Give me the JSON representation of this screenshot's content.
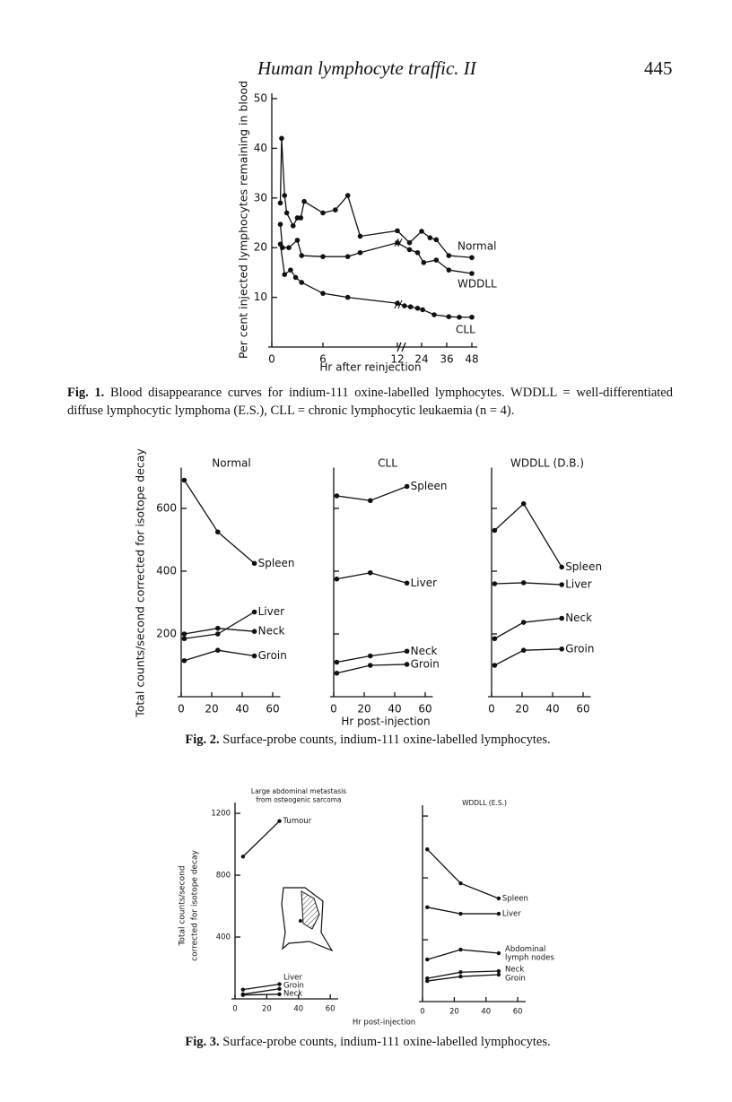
{
  "header": {
    "running_title": "Human lymphocyte traffic. II",
    "page_number": "445"
  },
  "captions": [
    {
      "label": "Fig. 1.",
      "text": "Blood disappearance curves for indium-111 oxine-labelled lymphocytes. WDDLL = well-differentiated diffuse lymphocytic lymphoma (E.S.), CLL = chronic lymphocytic leukaemia (n = 4)."
    },
    {
      "label": "Fig. 2.",
      "text": "Surface-probe counts, indium-111 oxine-labelled lymphocytes."
    },
    {
      "label": "Fig. 3.",
      "text": "Surface-probe counts, indium-111 oxine-labelled lymphocytes."
    }
  ],
  "chart_data": [
    {
      "type": "line",
      "y_label": "Per cent injected lymphocytes remaining in blood",
      "x_label": "Hr after reinjection",
      "xlim": [
        0,
        48
      ],
      "xticks": [
        0,
        6,
        12,
        24,
        36,
        48
      ],
      "ylim": [
        0,
        50
      ],
      "yticks": [
        10,
        20,
        30,
        40,
        50
      ],
      "color": "#111111",
      "series": [
        {
          "name": "Normal",
          "x": [
            1,
            1.15,
            1.5,
            1.75,
            2.5,
            3,
            3.4,
            3.8,
            6,
            7,
            8,
            9,
            12,
            18,
            24,
            28,
            31,
            37,
            48
          ],
          "values": [
            29,
            42,
            30.5,
            27,
            24.4,
            26,
            26,
            29.3,
            27,
            27.6,
            30.5,
            22.3,
            23.4,
            21,
            23.3,
            22,
            21.6,
            18.4,
            18
          ]
        },
        {
          "name": "WDDLL",
          "x": [
            1,
            1.25,
            2,
            3,
            3.5,
            6,
            8,
            9,
            12,
            18,
            22,
            25,
            31,
            37,
            48
          ],
          "values": [
            24.7,
            20,
            20,
            21.5,
            18.4,
            18.2,
            18.2,
            19,
            21,
            19.6,
            19,
            17,
            17.5,
            15.5,
            14.8
          ]
        },
        {
          "name": "CLL",
          "x": [
            1,
            1.5,
            2.2,
            2.8,
            3.5,
            6,
            8,
            12,
            15.5,
            18.5,
            22,
            24.5,
            30,
            37,
            42,
            48
          ],
          "values": [
            20.7,
            14.6,
            15.5,
            14,
            13,
            10.8,
            10,
            8.8,
            8.3,
            8.1,
            7.8,
            7.5,
            6.5,
            6.1,
            6,
            6
          ]
        }
      ]
    },
    {
      "type": "line",
      "title": "Normal",
      "y_label": "Total counts/second corrected for isotope decay",
      "xlim": [
        0,
        65
      ],
      "xticks": [
        0,
        20,
        40,
        60
      ],
      "ylim": [
        0,
        730
      ],
      "yticks": [
        200,
        400,
        600
      ],
      "x": [
        2,
        24,
        48
      ],
      "color": "#111111",
      "series": [
        {
          "name": "Spleen",
          "values": [
            690,
            525,
            425
          ]
        },
        {
          "name": "Liver",
          "values": [
            185,
            200,
            270
          ]
        },
        {
          "name": "Neck",
          "values": [
            200,
            218,
            208
          ]
        },
        {
          "name": "Groin",
          "values": [
            115,
            148,
            130
          ]
        }
      ]
    },
    {
      "type": "line",
      "title": "CLL",
      "x_label": "Hr post-injection",
      "xlim": [
        0,
        65
      ],
      "xticks": [
        0,
        20,
        40,
        60
      ],
      "ylim": [
        0,
        730
      ],
      "x": [
        2,
        24,
        48
      ],
      "color": "#111111",
      "series": [
        {
          "name": "Spleen",
          "values": [
            640,
            625,
            670
          ]
        },
        {
          "name": "Liver",
          "values": [
            375,
            395,
            362
          ]
        },
        {
          "name": "Neck",
          "values": [
            110,
            130,
            145
          ]
        },
        {
          "name": "Groin",
          "values": [
            75,
            100,
            103
          ]
        }
      ]
    },
    {
      "type": "line",
      "title": "WDDLL (D.B.)",
      "xlim": [
        0,
        65
      ],
      "xticks": [
        0,
        20,
        40,
        60
      ],
      "ylim": [
        0,
        730
      ],
      "x": [
        2,
        21,
        46
      ],
      "color": "#111111",
      "series": [
        {
          "name": "Spleen",
          "values": [
            530,
            615,
            413
          ]
        },
        {
          "name": "Liver",
          "values": [
            360,
            363,
            357
          ]
        },
        {
          "name": "Neck",
          "values": [
            185,
            237,
            250
          ]
        },
        {
          "name": "Groin",
          "values": [
            100,
            148,
            152
          ]
        }
      ]
    },
    {
      "type": "line",
      "title": [
        "Large abdominal metastasis",
        "from osteogenic sarcoma"
      ],
      "y_label": [
        "Total counts/second",
        "corrected for isotope decay"
      ],
      "xlim": [
        0,
        65
      ],
      "xticks": [
        0,
        20,
        40,
        60
      ],
      "ylim": [
        0,
        1270
      ],
      "yticks": [
        400,
        800,
        1200
      ],
      "x": [
        5,
        28
      ],
      "color": "#111111",
      "series": [
        {
          "name": "Tumour",
          "values": [
            920,
            1150
          ]
        },
        {
          "name": "Liver",
          "values": [
            60,
            95
          ]
        },
        {
          "name": "Groin",
          "values": [
            30,
            65
          ]
        },
        {
          "name": "Neck",
          "values": [
            25,
            30
          ]
        }
      ]
    },
    {
      "type": "line",
      "title": "WDDLL (E.S.)",
      "x_label": "Hr post-injection",
      "xlim": [
        0,
        65
      ],
      "xticks": [
        0,
        20,
        40,
        60
      ],
      "ylim": [
        0,
        1270
      ],
      "x": [
        3,
        24,
        48
      ],
      "color": "#111111",
      "series": [
        {
          "name": "Spleen",
          "values": [
            985,
            765,
            667
          ]
        },
        {
          "name": "Liver",
          "values": [
            610,
            568,
            568
          ]
        },
        {
          "name": "Abdominal lymph nodes",
          "values": [
            272,
            336,
            313
          ]
        },
        {
          "name": "Neck",
          "values": [
            150,
            190,
            197
          ]
        },
        {
          "name": "Groin",
          "values": [
            133,
            162,
            174
          ]
        }
      ]
    }
  ]
}
